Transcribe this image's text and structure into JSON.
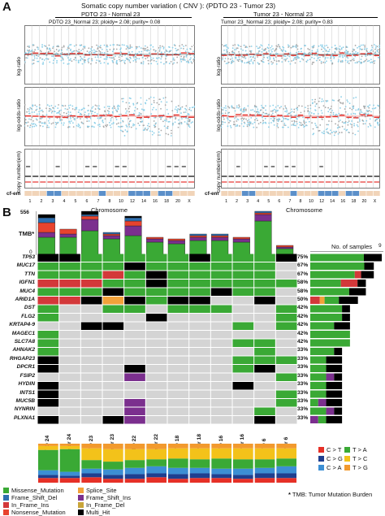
{
  "panel_a": {
    "letter": "A",
    "title": "Somatic copy number variation ( CNV ): (PDTO 23 - Tumor 23)",
    "left_header": "PDTO 23 - Normal 23",
    "right_header": "Tumor 23 - Normal 23",
    "left_subtitle": "PDTO 23_Normal 23; ploidy= 2.08; purity= 0.08",
    "right_subtitle": "Tumor 23_Normal 23; ploidy= 2.08; purity= 0.83",
    "ylabel_top": "log-ratio",
    "ylabel_mid": "log-odds-ratio",
    "ylabel_bottom": "copy number(em)",
    "cfem_label": "cf-em",
    "xlabel": "Chromosome",
    "chromosome_ticks": [
      "1",
      "2",
      "3",
      "4",
      "5",
      "6",
      "7",
      "8",
      "10",
      "12",
      "14",
      "16",
      "18",
      "20",
      "X"
    ],
    "y_ticks_bottom": [
      "8",
      "4",
      "1",
      "0"
    ]
  },
  "panel_b": {
    "letter": "B",
    "tmb_label": "TMB*",
    "tmb_max": "556",
    "tmb_zero": "0",
    "samples_header": "No. of samples",
    "samples_axis_max": "9",
    "samples": [
      "PDTO 24",
      "Tumor 24",
      "PDTO 23",
      "Tumor 23",
      "PDTO 22",
      "Tumor 22",
      "PDTO 18",
      "Tumor 18",
      "PDTO 16",
      "Tumor 16",
      "PDTO 6",
      "Tumor 6"
    ],
    "genes": [
      "TP53",
      "MUC17",
      "TTN",
      "IGFN1",
      "MUC4",
      "ARID1A",
      "DST",
      "FLG2",
      "KRTAP4-9",
      "MAGEC1",
      "SLC7A8",
      "AHNAK2",
      "RHGAP23",
      "DPCR1",
      "FSIP2",
      "HYDIN",
      "INTS1",
      "MUC5B",
      "NYNRIN",
      "PLXNA1"
    ],
    "percents": [
      "75%",
      "67%",
      "67%",
      "58%",
      "58%",
      "50%",
      "42%",
      "42%",
      "42%",
      "42%",
      "42%",
      "33%",
      "33%",
      "33%",
      "33%",
      "33%",
      "33%",
      "33%",
      "33%",
      "33%"
    ],
    "mutation_legend": [
      {
        "label": "Missense_Mutation",
        "color": "#3aa935"
      },
      {
        "label": "Splice_Site",
        "color": "#f2a23a"
      },
      {
        "label": "Frame_Shift_Del",
        "color": "#2f6fb0"
      },
      {
        "label": "Frame_Shift_Ins",
        "color": "#7b2f8e"
      },
      {
        "label": "In_Frame_Ins",
        "color": "#d3383a"
      },
      {
        "label": "In_Frame_Del",
        "color": "#c9a53a"
      },
      {
        "label": "Nonsense_Mutation",
        "color": "#e8432e"
      },
      {
        "label": "Multi_Hit",
        "color": "#000000"
      }
    ],
    "snv_legend": [
      {
        "label": "C > T",
        "color": "#e63027"
      },
      {
        "label": "T > A",
        "color": "#3aa935"
      },
      {
        "label": "C > G",
        "color": "#1f3f8f"
      },
      {
        "label": "T > C",
        "color": "#f3c21a"
      },
      {
        "label": "C > A",
        "color": "#3c8fd4"
      },
      {
        "label": "T > G",
        "color": "#f29a2e"
      }
    ],
    "footnote_star": "*",
    "footnote": "TMB: Tumor Mutation Burden"
  }
}
